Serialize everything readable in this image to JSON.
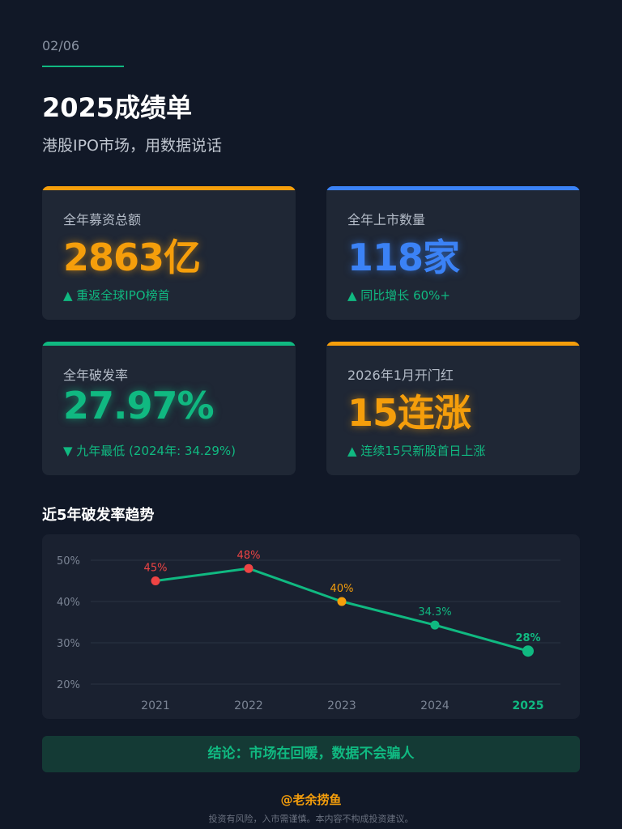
{
  "page_indicator": "02/06",
  "title": "2025成绩单",
  "subtitle": "港股IPO市场，用数据说话",
  "cards": [
    {
      "label": "全年募资总额",
      "value": "2863亿",
      "note": "▲ 重返全球IPO榜首",
      "accent": "#f59e0b",
      "value_color": "#f59e0b"
    },
    {
      "label": "全年上市数量",
      "value": "118家",
      "note": "▲ 同比增长 60%+",
      "accent": "#3b82f6",
      "value_color": "#3b82f6"
    },
    {
      "label": "全年破发率",
      "value": "27.97%",
      "note": "▼ 九年最低 (2024年: 34.29%)",
      "accent": "#10b981",
      "value_color": "#10b981"
    },
    {
      "label": "2026年1月开门红",
      "value": "15连涨",
      "note": "▲ 连续15只新股首日上涨",
      "accent": "#f59e0b",
      "value_color": "#f59e0b"
    }
  ],
  "chart_title": "近5年破发率趋势",
  "chart_data": {
    "type": "line",
    "categories": [
      "2021",
      "2022",
      "2023",
      "2024",
      "2025"
    ],
    "values": [
      45,
      48,
      40,
      34.3,
      28
    ],
    "data_labels": [
      "45%",
      "48%",
      "40%",
      "34.3%",
      "28%"
    ],
    "point_colors": [
      "#ef4444",
      "#ef4444",
      "#f59e0b",
      "#10b981",
      "#10b981"
    ],
    "line_color": "#10b981",
    "yticks": [
      "50%",
      "40%",
      "30%",
      "20%"
    ],
    "ylim": [
      20,
      50
    ],
    "grid": true
  },
  "conclusion": "结论：市场在回暖，数据不会骗人",
  "brand": "@老余捞鱼",
  "disclaimer": "投资有风险，入市需谨慎。本内容不构成投资建议。"
}
